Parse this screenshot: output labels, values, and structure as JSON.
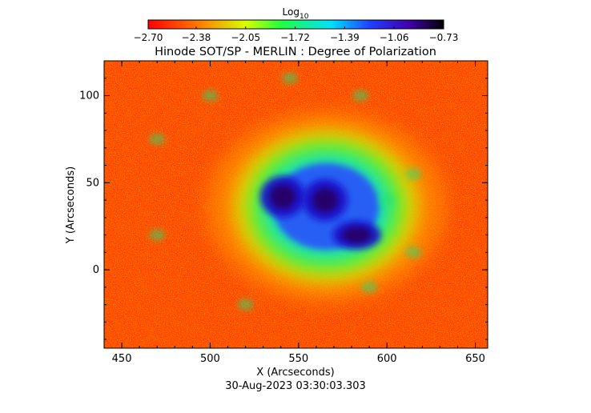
{
  "chart_data": {
    "type": "heatmap",
    "title": "Hinode SOT/SP - MERLIN : Degree of Polarization",
    "xlabel": "X (Arcseconds)",
    "ylabel": "Y (Arcseconds)",
    "timestamp": "30-Aug-2023 03:30:03.303",
    "xlim": [
      440,
      657
    ],
    "ylim": [
      -45,
      120
    ],
    "x_ticks": [
      450,
      500,
      550,
      600,
      650
    ],
    "y_ticks": [
      0,
      50,
      100
    ],
    "colorbar": {
      "label_base": "Log",
      "label_sub": "10",
      "colormap": "rainbow",
      "range": [
        -2.7,
        -0.73
      ],
      "tick_values": [
        -2.7,
        -2.38,
        -2.05,
        -1.72,
        -1.39,
        -1.06,
        -0.73
      ],
      "tick_labels": [
        "−2.70",
        "−2.38",
        "−2.05",
        "−1.72",
        "−1.39",
        "−1.06",
        "−0.73"
      ]
    },
    "features": [
      {
        "x": 541,
        "y": 42
      },
      {
        "x": 565,
        "y": 40
      },
      {
        "x": 583,
        "y": 20
      }
    ]
  }
}
